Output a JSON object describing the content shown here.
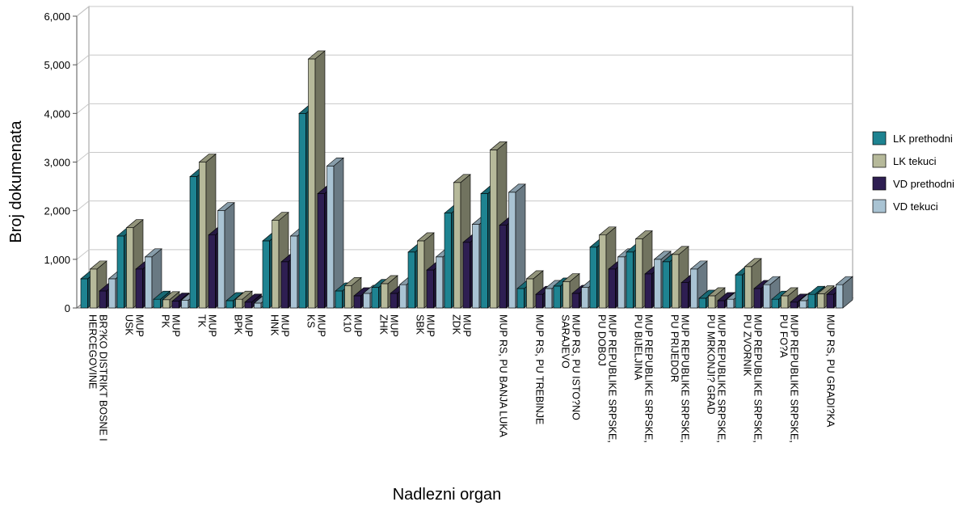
{
  "chart_data": {
    "type": "bar",
    "title": "",
    "xlabel": "Nadlezni organ",
    "ylabel": "Broj dokumenata",
    "ylim": [
      0,
      6000
    ],
    "y_ticks": [
      "0",
      "1,000",
      "2,000",
      "3,000",
      "4,000",
      "5,000",
      "6,000"
    ],
    "y_tick_values": [
      0,
      1000,
      2000,
      3000,
      4000,
      5000,
      6000
    ],
    "grid": true,
    "legend_position": "right",
    "categories": [
      [
        "BR?KO DISTRIKT BOSNE I",
        "HERCEGOVINE"
      ],
      [
        "MUP",
        "USK"
      ],
      [
        "MUP",
        "PK"
      ],
      [
        "MUP",
        "TK"
      ],
      [
        "MUP",
        "BPK"
      ],
      [
        "MUP",
        "HNK"
      ],
      [
        "MUP",
        "KS"
      ],
      [
        "MUP",
        "K10"
      ],
      [
        "MUP",
        "ZHK"
      ],
      [
        "MUP",
        "SBK"
      ],
      [
        "MUP",
        "ZDK"
      ],
      [
        "MUP RS, PU BANJA LUKA"
      ],
      [
        "MUP RS, PU TREBINJE"
      ],
      [
        "MUP RS, PU ISTO?NO",
        "SARAJEVO"
      ],
      [
        "MUP REPUBLIKE SRPSKE,",
        "PU DOBOJ"
      ],
      [
        "MUP REPUBLIKE SRPSKE,",
        "PU BIJELJINA"
      ],
      [
        "MUP REPUBLIKE SRPSKE,",
        "PU PRIJEDOR"
      ],
      [
        "MUP REPUBLIKE SRPSKE,",
        "PU MRKONJI? GRAD"
      ],
      [
        "MUP REPUBLIKE SRPSKE,",
        "PU ZVORNIK"
      ],
      [
        "MUP REPUBLIKE SRPSKE,",
        "PU FO?A"
      ],
      [
        "MUP RS, PU GRADI?KA"
      ]
    ],
    "series": [
      {
        "name": "LK prethodni",
        "color": "#1e8391",
        "values": [
          600,
          1480,
          180,
          2700,
          150,
          1380,
          4000,
          350,
          420,
          1150,
          1950,
          2350,
          400,
          450,
          1250,
          1150,
          950,
          200,
          680,
          180,
          280
        ]
      },
      {
        "name": "LK tekuci",
        "color": "#b6b99a",
        "values": [
          800,
          1650,
          170,
          3000,
          180,
          1800,
          5120,
          460,
          500,
          1380,
          2580,
          3250,
          600,
          540,
          1500,
          1420,
          1100,
          250,
          850,
          250,
          290
        ]
      },
      {
        "name": "VD prethodni",
        "color": "#2e1e52",
        "values": [
          350,
          800,
          140,
          1500,
          120,
          950,
          2350,
          250,
          300,
          780,
          1350,
          1700,
          280,
          300,
          800,
          700,
          520,
          150,
          400,
          120,
          280
        ]
      },
      {
        "name": "VD tekuci",
        "color": "#a9c3d3",
        "values": [
          600,
          1050,
          160,
          2000,
          100,
          1480,
          2920,
          300,
          480,
          1050,
          1720,
          2380,
          400,
          420,
          1050,
          1000,
          800,
          180,
          480,
          150,
          480
        ]
      }
    ]
  }
}
